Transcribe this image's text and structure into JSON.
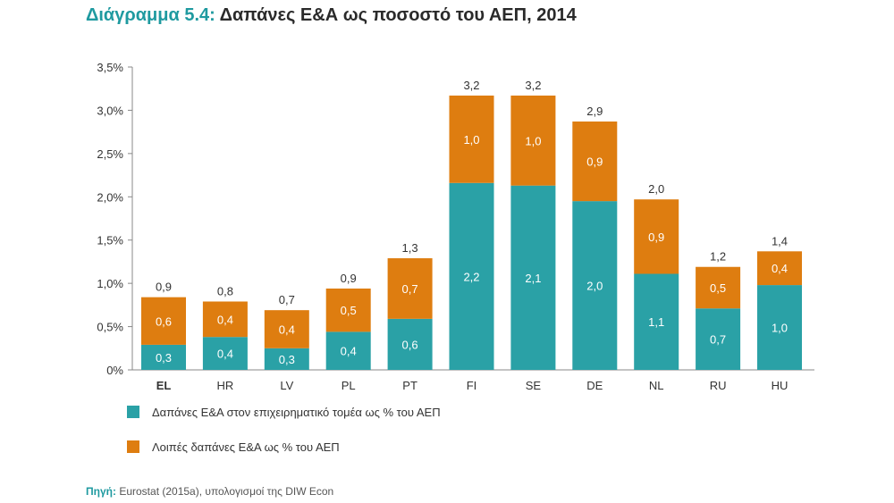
{
  "title": {
    "prefix": "Διάγραμμα 5.4:",
    "text": "Δαπάνες Ε&Α ως ποσοστό του ΑΕΠ, 2014"
  },
  "colors": {
    "business": "#2aa1a6",
    "other": "#de7d10",
    "title_accent": "#1f9aa0"
  },
  "chart_data": {
    "type": "bar",
    "stacked": true,
    "title": "Δαπάνες Ε&Α ως ποσοστό του ΑΕΠ, 2014",
    "xlabel": "",
    "ylabel": "",
    "ylim": [
      0,
      3.5
    ],
    "yticks": [
      0,
      0.5,
      1.0,
      1.5,
      2.0,
      2.5,
      3.0,
      3.5
    ],
    "ytick_labels": [
      "0%",
      "0,5%",
      "1,0%",
      "1,5%",
      "2,0%",
      "2,5%",
      "3,0%",
      "3,5%"
    ],
    "categories": [
      "EL",
      "HR",
      "LV",
      "PL",
      "PT",
      "FI",
      "SE",
      "DE",
      "NL",
      "RU",
      "HU"
    ],
    "bold_categories": [
      "EL"
    ],
    "series": [
      {
        "name": "Δαπάνες Ε&Α στον επιχειρηματικό τομέα ως % του ΑΕΠ",
        "values": [
          0.29,
          0.38,
          0.25,
          0.44,
          0.59,
          2.16,
          2.13,
          1.95,
          1.11,
          0.71,
          0.98
        ],
        "labels": [
          "0,3",
          "0,4",
          "0,3",
          "0,4",
          "0,6",
          "2,2",
          "2,1",
          "2,0",
          "1,1",
          "0,7",
          "1,0"
        ]
      },
      {
        "name": "Λοιπές δαπάνες Ε&Α ως % του ΑΕΠ",
        "values": [
          0.55,
          0.41,
          0.44,
          0.5,
          0.7,
          1.01,
          1.04,
          0.92,
          0.86,
          0.48,
          0.39
        ],
        "labels": [
          "0,6",
          "0,4",
          "0,4",
          "0,5",
          "0,7",
          "1,0",
          "1,0",
          "0,9",
          "0,9",
          "0,5",
          "0,4"
        ]
      }
    ],
    "totals": [
      "0,9",
      "0,8",
      "0,7",
      "0,9",
      "1,3",
      "3,2",
      "3,2",
      "2,9",
      "2,0",
      "1,2",
      "1,4"
    ],
    "legend_position": "bottom-left"
  },
  "legend": {
    "items": [
      "Δαπάνες Ε&Α στον επιχειρηματικό τομέα ως % του ΑΕΠ",
      "Λοιπές δαπάνες Ε&Α ως % του ΑΕΠ"
    ]
  },
  "source": {
    "prefix": "Πηγή:",
    "text": " Eurostat (2015a), υπολογισμοί της DIW Econ"
  }
}
